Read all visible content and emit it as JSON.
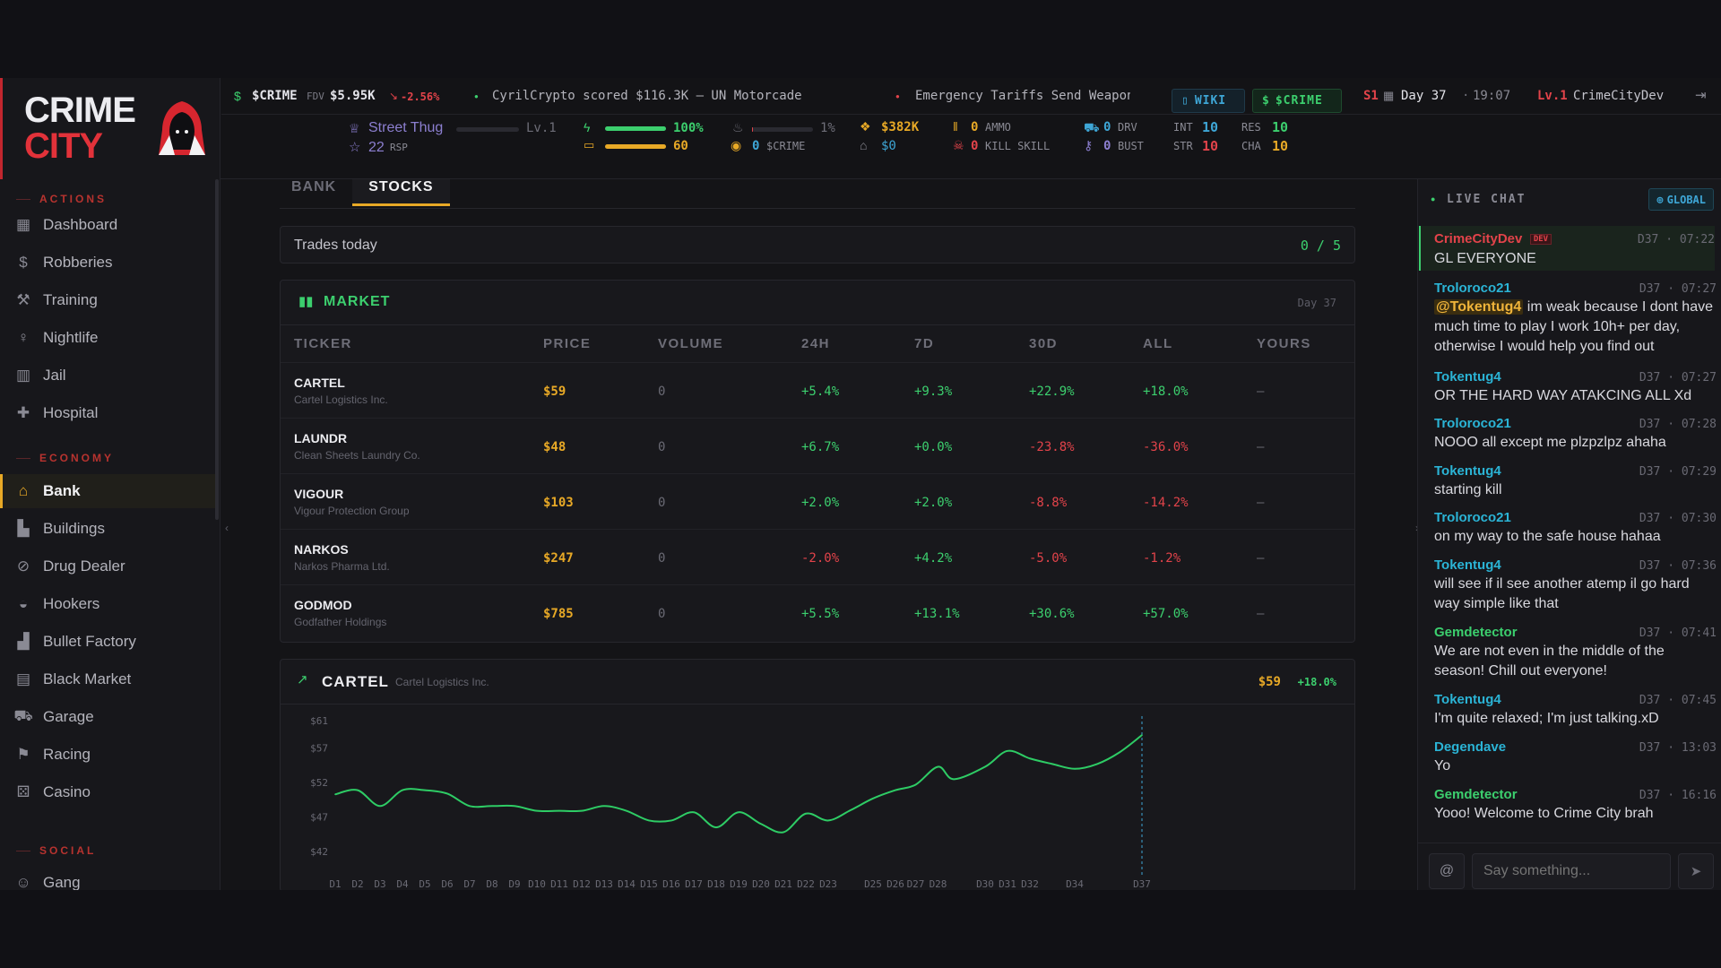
{
  "brand": {
    "line1": "CRIME",
    "line2": "CITY"
  },
  "ticker": {
    "coin": "$CRIME",
    "fdv_label": "FDV",
    "fdv_value": "$5.95K",
    "fdv_change": "-2.56%",
    "news1": "CyrilCrypto scored $116.3K — UN Motorcade",
    "news2": "Emergency Tariffs Send Weapon Pr"
  },
  "header_buttons": {
    "wiki": "WIKI",
    "crime": "$CRIME"
  },
  "session": {
    "season": "S1",
    "day": "Day 37",
    "time": "19:07",
    "level": "Lv.1",
    "username": "CrimeCityDev"
  },
  "player": {
    "rank": "Street Thug",
    "level": "Lv.1",
    "rsp": "22",
    "rsp_label": "RSP",
    "energy": "100%",
    "energy_fraction": 1.0,
    "stamina": "60",
    "stamina_fraction": 1.0,
    "heat": "1%",
    "heat_fraction": 0.01,
    "crime_tokens": "0",
    "crime_label": "$CRIME",
    "cash": "$382K",
    "bank": "$0",
    "ammo": "0",
    "ammo_label": "AMMO",
    "kill_skill": "0",
    "kill_label": "KILL SKILL",
    "drv": "0",
    "drv_label": "DRV",
    "bust": "0",
    "bust_label": "BUST",
    "int_label": "INT",
    "int": "10",
    "str_label": "STR",
    "str": "10",
    "res_label": "RES",
    "res": "10",
    "cha_label": "CHA",
    "cha": "10"
  },
  "sidebar": {
    "sections": {
      "actions": "ACTIONS",
      "economy": "ECONOMY",
      "social": "SOCIAL"
    },
    "actions": [
      {
        "label": "Dashboard",
        "icon": "grid-icon"
      },
      {
        "label": "Robberies",
        "icon": "moneybag-icon"
      },
      {
        "label": "Training",
        "icon": "dumbbell-icon"
      },
      {
        "label": "Nightlife",
        "icon": "glass-icon"
      },
      {
        "label": "Jail",
        "icon": "bars-icon"
      },
      {
        "label": "Hospital",
        "icon": "hospital-icon"
      }
    ],
    "economy": [
      {
        "label": "Bank",
        "icon": "bank-icon"
      },
      {
        "label": "Buildings",
        "icon": "building-icon"
      },
      {
        "label": "Drug Dealer",
        "icon": "pill-icon"
      },
      {
        "label": "Hookers",
        "icon": "lips-icon"
      },
      {
        "label": "Bullet Factory",
        "icon": "factory-icon"
      },
      {
        "label": "Black Market",
        "icon": "store-icon"
      },
      {
        "label": "Garage",
        "icon": "car-icon"
      },
      {
        "label": "Racing",
        "icon": "flag-icon"
      },
      {
        "label": "Casino",
        "icon": "dice-icon"
      }
    ],
    "social": [
      {
        "label": "Gang",
        "icon": "users-icon"
      }
    ]
  },
  "tabs": [
    "BANK",
    "STOCKS"
  ],
  "trades": {
    "label": "Trades today",
    "value": "0 / 5"
  },
  "market": {
    "title": "MARKET",
    "day": "Day 37",
    "columns": [
      "TICKER",
      "PRICE",
      "VOLUME",
      "24H",
      "7D",
      "30D",
      "ALL",
      "YOURS"
    ],
    "rows": [
      {
        "ticker": "CARTEL",
        "name": "Cartel Logistics Inc.",
        "price": "$59",
        "volume": "0",
        "h24": "+5.4%",
        "d7": "+9.3%",
        "d30": "+22.9%",
        "all": "+18.0%",
        "yours": "—"
      },
      {
        "ticker": "LAUNDR",
        "name": "Clean Sheets Laundry Co.",
        "price": "$48",
        "volume": "0",
        "h24": "+6.7%",
        "d7": "+0.0%",
        "d30": "-23.8%",
        "all": "-36.0%",
        "yours": "—"
      },
      {
        "ticker": "VIGOUR",
        "name": "Vigour Protection Group",
        "price": "$103",
        "volume": "0",
        "h24": "+2.0%",
        "d7": "+2.0%",
        "d30": "-8.8%",
        "all": "-14.2%",
        "yours": "—"
      },
      {
        "ticker": "NARKOS",
        "name": "Narkos Pharma Ltd.",
        "price": "$247",
        "volume": "0",
        "h24": "-2.0%",
        "d7": "+4.2%",
        "d30": "-5.0%",
        "all": "-1.2%",
        "yours": "—"
      },
      {
        "ticker": "GODMOD",
        "name": "Godfather Holdings",
        "price": "$785",
        "volume": "0",
        "h24": "+5.5%",
        "d7": "+13.1%",
        "d30": "+30.6%",
        "all": "+57.0%",
        "yours": "—"
      }
    ]
  },
  "stock_detail": {
    "ticker": "CARTEL",
    "name": "Cartel Logistics Inc.",
    "price": "$59",
    "change": "+18.0%"
  },
  "chart_data": {
    "type": "line",
    "y_ticks": [
      "$61",
      "$57",
      "$52",
      "$47",
      "$42"
    ],
    "y_tick_values": [
      61,
      57,
      52,
      47,
      42
    ],
    "ylim": [
      42,
      61
    ],
    "x_tick_labels": [
      "D1",
      "D2",
      "D3",
      "D4",
      "D5",
      "D6",
      "D7",
      "D8",
      "D9",
      "D10",
      "D11",
      "D12",
      "D13",
      "D14",
      "D15",
      "D16",
      "D17",
      "D18",
      "D19",
      "D20",
      "D21",
      "D22",
      "D23",
      "D25",
      "D26",
      "D27",
      "D28",
      "D30",
      "D31",
      "D32",
      "D34",
      "D37"
    ],
    "x_tick_days": [
      1,
      2,
      3,
      4,
      5,
      6,
      7,
      8,
      9,
      10,
      11,
      12,
      13,
      14,
      15,
      16,
      17,
      18,
      19,
      20,
      21,
      22,
      23,
      25,
      26,
      26.9,
      27.9,
      30,
      31,
      32,
      34,
      37
    ],
    "xlim": [
      1,
      37
    ],
    "series": [
      {
        "color": "#2ecc65",
        "points": [
          [
            1,
            50.3
          ],
          [
            2,
            50.9
          ],
          [
            3,
            48.6
          ],
          [
            4,
            50.9
          ],
          [
            5,
            50.9
          ],
          [
            6,
            50.4
          ],
          [
            7,
            48.6
          ],
          [
            8,
            48.6
          ],
          [
            9,
            48.6
          ],
          [
            10,
            47.9
          ],
          [
            11,
            47.9
          ],
          [
            12,
            47.9
          ],
          [
            13,
            48.6
          ],
          [
            14,
            47.9
          ],
          [
            15,
            46.5
          ],
          [
            16,
            46.5
          ],
          [
            17,
            47.7
          ],
          [
            18,
            45.5
          ],
          [
            19,
            47.7
          ],
          [
            20,
            46.0
          ],
          [
            21,
            44.8
          ],
          [
            22,
            47.5
          ],
          [
            23,
            46.5
          ],
          [
            24,
            48.0
          ],
          [
            25,
            49.7
          ],
          [
            26,
            50.9
          ],
          [
            26.9,
            51.7
          ],
          [
            27.9,
            54.3
          ],
          [
            28.6,
            52.5
          ],
          [
            30,
            54.3
          ],
          [
            31,
            56.6
          ],
          [
            32,
            55.5
          ],
          [
            33,
            54.7
          ],
          [
            34,
            54.0
          ],
          [
            35,
            54.7
          ],
          [
            36,
            56.4
          ],
          [
            37,
            58.9
          ]
        ]
      }
    ]
  },
  "chat": {
    "title": "LIVE CHAT",
    "scope": "GLOBAL",
    "placeholder": "Say something...",
    "dev_badge": "DEV",
    "messages": [
      {
        "user": "CrimeCityDev",
        "time": "D37 · 07:22",
        "text": "GL EVERYONE"
      },
      {
        "user": "Troloroco21",
        "time": "D37 · 07:27",
        "mention": "@Tokentug4",
        "text": " im weak because I dont have much time to play I work 10h+ per day, otherwise I would help you find out"
      },
      {
        "user": "Tokentug4",
        "time": "D37 · 07:27",
        "text": "OR THE HARD WAY ATAKCING ALL Xd"
      },
      {
        "user": "Troloroco21",
        "time": "D37 · 07:28",
        "text": "NOOO all except me plzpzlpz ahaha"
      },
      {
        "user": "Tokentug4",
        "time": "D37 · 07:29",
        "text": "starting kill"
      },
      {
        "user": "Troloroco21",
        "time": "D37 · 07:30",
        "text": "on my way to the safe house hahaa"
      },
      {
        "user": "Tokentug4",
        "time": "D37 · 07:36",
        "text": "will see if il see another atemp il go hard way simple like that"
      },
      {
        "user": "Gemdetector",
        "time": "D37 · 07:41",
        "text": "We are not even in the middle of the season! Chill out everyone!"
      },
      {
        "user": "Tokentug4",
        "time": "D37 · 07:45",
        "text": "I'm quite relaxed; I'm just talking.xD"
      },
      {
        "user": "Degendave",
        "time": "D37 · 13:03",
        "text": "Yo"
      },
      {
        "user": "Gemdetector",
        "time": "D37 · 16:16",
        "text": "Yooo! Welcome to Crime City brah"
      }
    ]
  }
}
